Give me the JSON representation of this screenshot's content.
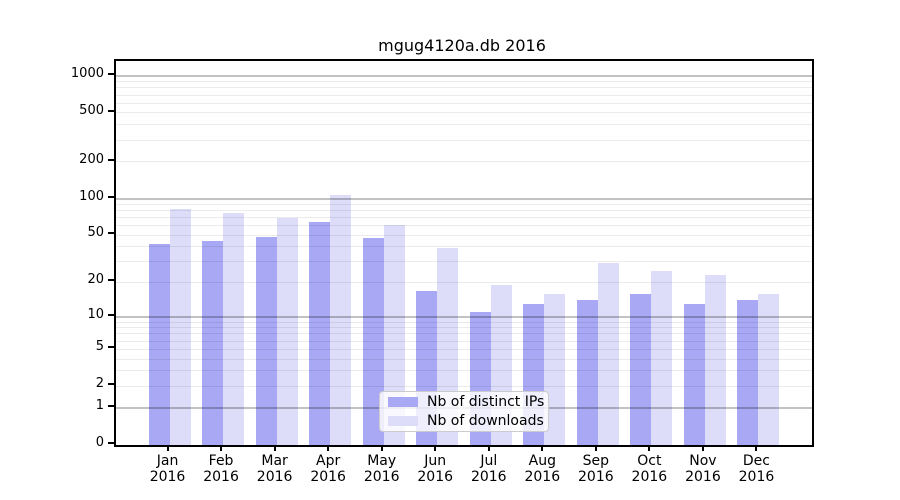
{
  "title": "mgug4120a.db 2016",
  "chart_data": {
    "type": "bar",
    "title": "mgug4120a.db 2016",
    "categories": [
      "Jan",
      "Feb",
      "Mar",
      "Apr",
      "May",
      "Jun",
      "Jul",
      "Aug",
      "Sep",
      "Oct",
      "Nov",
      "Dec"
    ],
    "year_label": "2016",
    "series": [
      {
        "name": "Nb of distinct IPs",
        "color": "#a8a8f4",
        "values": [
          42,
          45,
          48,
          64,
          47,
          17,
          11,
          13,
          14,
          16,
          13,
          14
        ]
      },
      {
        "name": "Nb of downloads",
        "color": "#ddddf9",
        "values": [
          82,
          76,
          69,
          106,
          61,
          39,
          19,
          16,
          29,
          25,
          23,
          16
        ]
      }
    ],
    "xlabel": "",
    "ylabel": "",
    "yscale": "log1p",
    "ylim": [
      0,
      1325
    ],
    "yticks": [
      0,
      1,
      2,
      5,
      10,
      20,
      50,
      100,
      200,
      500,
      1000
    ],
    "major_grid_values": [
      1,
      10,
      100,
      1000
    ],
    "minor_grid_values": [
      2,
      3,
      4,
      5,
      6,
      7,
      8,
      9,
      20,
      30,
      40,
      50,
      60,
      70,
      80,
      90,
      200,
      300,
      400,
      500,
      600,
      700,
      800,
      900
    ],
    "grid": true,
    "legend_position": "lower-center",
    "legend_entries": [
      "Nb of distinct IPs",
      "Nb of downloads"
    ]
  },
  "colors": {
    "background": "#ffffff",
    "spine": "#000000",
    "major_grid": "#c4c4c4",
    "minor_grid": "#ebebeb",
    "series_1": "#a8a8f4",
    "series_2": "#ddddf9",
    "legend_border": "#cccccc"
  }
}
